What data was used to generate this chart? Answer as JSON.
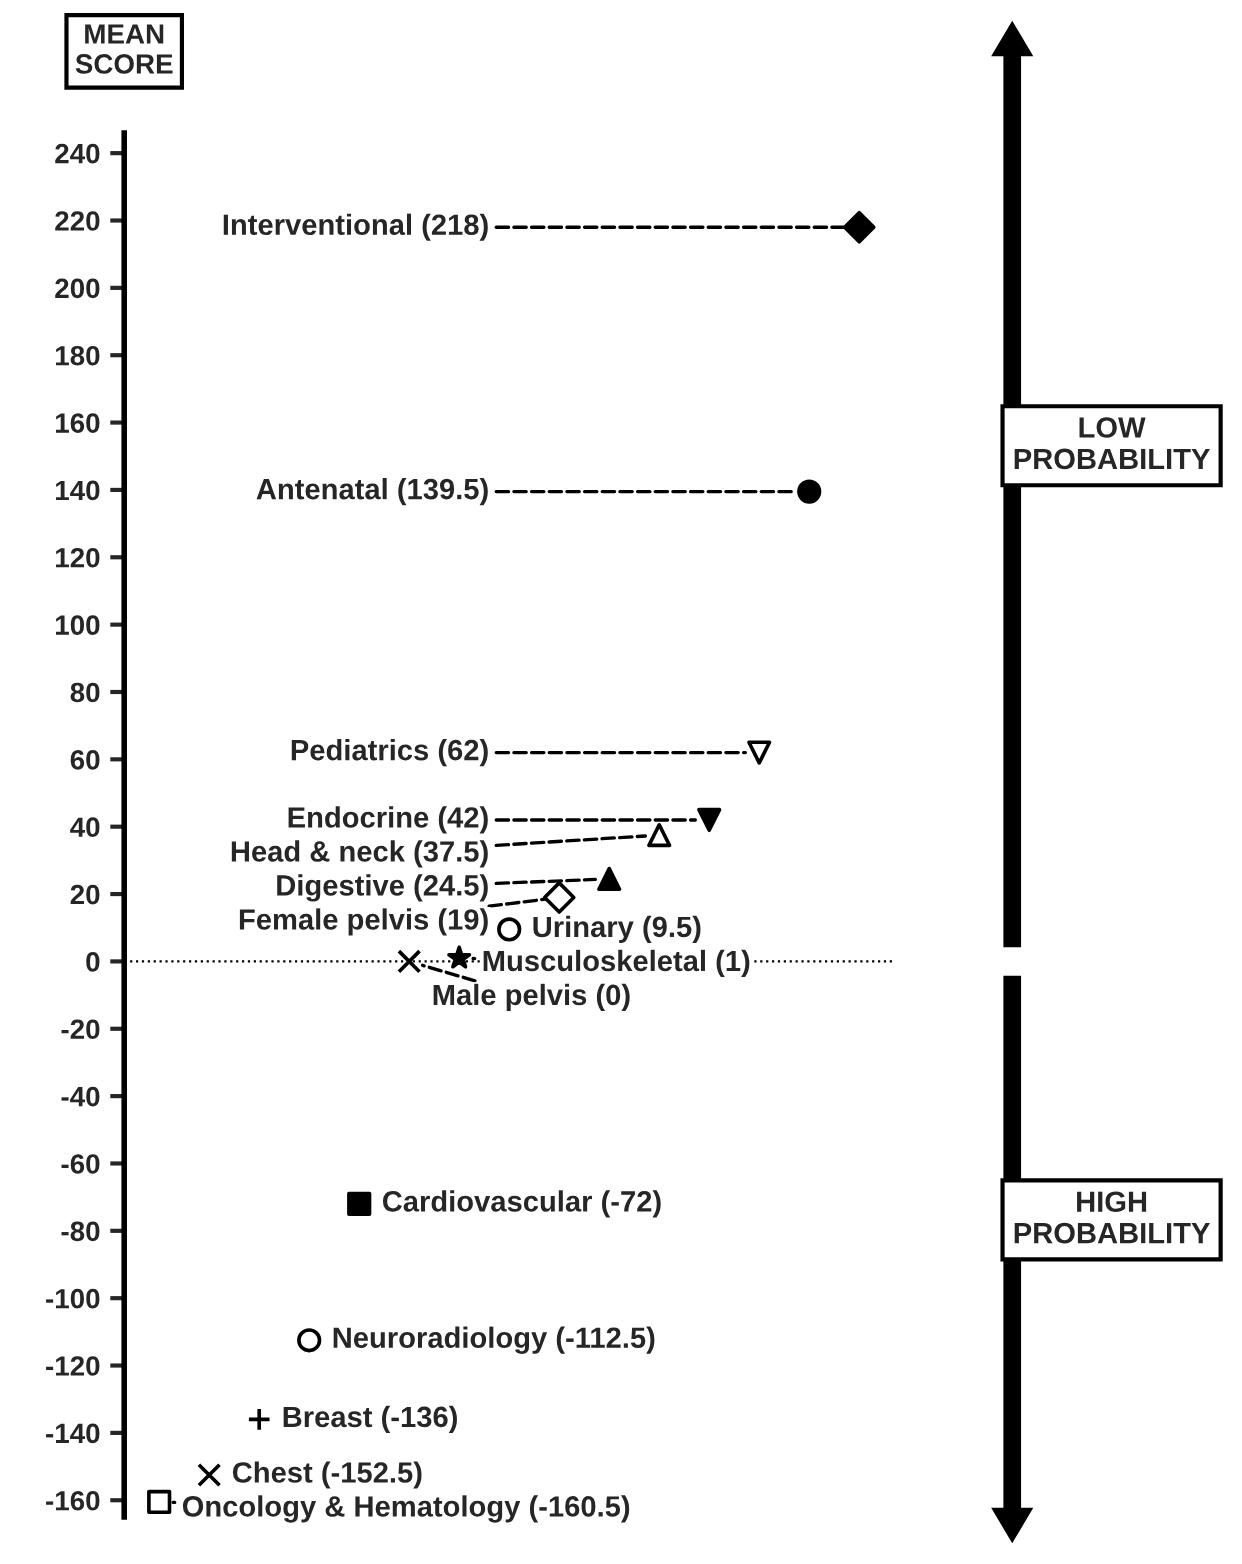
{
  "chart_data": {
    "type": "scatter",
    "ylabel": "MEAN\nSCORE",
    "categories": [
      null,
      null,
      null,
      null,
      null,
      null,
      null,
      null,
      null,
      null,
      null,
      null,
      null,
      null,
      null
    ],
    "series": [
      {
        "marker": "square",
        "color": "#ffffff",
        "values": [
          -160.5,
          null,
          null,
          null,
          null,
          null,
          null,
          null,
          null,
          null,
          null,
          null,
          null,
          null,
          null
        ],
        "value_labels": [
          "Oncology & Hematology (-160.5)",
          null,
          null,
          null,
          null,
          null,
          null,
          null,
          null,
          null,
          null,
          null,
          null,
          null,
          null
        ]
      },
      {
        "marker": "cross",
        "color": "#000000",
        "values": [
          null,
          -152.5,
          null,
          null,
          null,
          null,
          null,
          null,
          null,
          null,
          null,
          null,
          null,
          null,
          null
        ],
        "value_labels": [
          null,
          "Chest (-152.5)",
          null,
          null,
          null,
          null,
          null,
          null,
          null,
          null,
          null,
          null,
          null,
          null,
          null
        ]
      },
      {
        "marker": "plus",
        "color": "#000000",
        "values": [
          null,
          null,
          -136,
          null,
          null,
          null,
          null,
          null,
          null,
          null,
          null,
          null,
          null,
          null,
          null
        ],
        "value_labels": [
          null,
          null,
          "Breast (-136)",
          null,
          null,
          null,
          null,
          null,
          null,
          null,
          null,
          null,
          null,
          null,
          null
        ]
      },
      {
        "marker": "circle",
        "color": "#ffffff",
        "values": [
          null,
          null,
          null,
          -112.5,
          null,
          null,
          null,
          null,
          null,
          null,
          null,
          null,
          null,
          null,
          null
        ],
        "value_labels": [
          null,
          null,
          null,
          "Neuroradiology (-112.5)",
          null,
          null,
          null,
          null,
          null,
          null,
          null,
          null,
          null,
          null,
          null
        ]
      },
      {
        "marker": "square",
        "color": "#000000",
        "values": [
          null,
          null,
          null,
          null,
          -72,
          null,
          null,
          null,
          null,
          null,
          null,
          null,
          null,
          null,
          null
        ],
        "value_labels": [
          null,
          null,
          null,
          null,
          "Cardiovascular (-72)",
          null,
          null,
          null,
          null,
          null,
          null,
          null,
          null,
          null,
          null
        ]
      },
      {
        "marker": "cross",
        "color": "#000000",
        "values": [
          null,
          null,
          null,
          null,
          null,
          0,
          null,
          null,
          null,
          null,
          null,
          null,
          null,
          null,
          null
        ],
        "value_labels": [
          null,
          null,
          null,
          null,
          null,
          "Male pelvis (0)",
          null,
          null,
          null,
          null,
          null,
          null,
          null,
          null,
          null
        ]
      },
      {
        "marker": "star",
        "color": "#000000",
        "values": [
          null,
          null,
          null,
          null,
          null,
          null,
          1,
          null,
          null,
          null,
          null,
          null,
          null,
          null,
          null
        ],
        "value_labels": [
          null,
          null,
          null,
          null,
          null,
          null,
          "Musculoskeletal (1)",
          null,
          null,
          null,
          null,
          null,
          null,
          null,
          null
        ]
      },
      {
        "marker": "circle",
        "color": "#ffffff",
        "values": [
          null,
          null,
          null,
          null,
          null,
          null,
          null,
          9.5,
          null,
          null,
          null,
          null,
          null,
          null,
          null
        ],
        "value_labels": [
          null,
          null,
          null,
          null,
          null,
          null,
          null,
          "Urinary (9.5)",
          null,
          null,
          null,
          null,
          null,
          null,
          null
        ]
      },
      {
        "marker": "diamond",
        "color": "#ffffff",
        "values": [
          null,
          null,
          null,
          null,
          null,
          null,
          null,
          null,
          19,
          null,
          null,
          null,
          null,
          null,
          null
        ],
        "value_labels": [
          null,
          null,
          null,
          null,
          null,
          null,
          null,
          null,
          "Female pelvis (19)",
          null,
          null,
          null,
          null,
          null,
          null
        ]
      },
      {
        "marker": "triangle",
        "color": "#000000",
        "values": [
          null,
          null,
          null,
          null,
          null,
          null,
          null,
          null,
          null,
          24.5,
          null,
          null,
          null,
          null,
          null
        ],
        "value_labels": [
          null,
          null,
          null,
          null,
          null,
          null,
          null,
          null,
          null,
          "Digestive (24.5)",
          null,
          null,
          null,
          null,
          null
        ]
      },
      {
        "marker": "triangle",
        "color": "#ffffff",
        "values": [
          null,
          null,
          null,
          null,
          null,
          null,
          null,
          null,
          null,
          null,
          37.5,
          null,
          null,
          null,
          null
        ],
        "value_labels": [
          null,
          null,
          null,
          null,
          null,
          null,
          null,
          null,
          null,
          null,
          "Head & neck (37.5)",
          null,
          null,
          null,
          null
        ]
      },
      {
        "marker": "triangle_down",
        "color": "#000000",
        "values": [
          null,
          null,
          null,
          null,
          null,
          null,
          null,
          null,
          null,
          null,
          null,
          42,
          null,
          null,
          null
        ],
        "value_labels": [
          null,
          null,
          null,
          null,
          null,
          null,
          null,
          null,
          null,
          null,
          null,
          "Endocrine (42)",
          null,
          null,
          null
        ]
      },
      {
        "marker": "triangle_down",
        "color": "#ffffff",
        "values": [
          null,
          null,
          null,
          null,
          null,
          null,
          null,
          null,
          null,
          null,
          null,
          null,
          62,
          null,
          null
        ],
        "value_labels": [
          null,
          null,
          null,
          null,
          null,
          null,
          null,
          null,
          null,
          null,
          null,
          null,
          "Pediatrics (62)",
          null,
          null
        ]
      },
      {
        "marker": "circle",
        "color": "#000000",
        "values": [
          null,
          null,
          null,
          null,
          null,
          null,
          null,
          null,
          null,
          null,
          null,
          null,
          null,
          139.5,
          null
        ],
        "value_labels": [
          null,
          null,
          null,
          null,
          null,
          null,
          null,
          null,
          null,
          null,
          null,
          null,
          null,
          "Antenatal (139.5)",
          null
        ]
      },
      {
        "marker": "diamond",
        "color": "#000000",
        "values": [
          null,
          null,
          null,
          null,
          null,
          null,
          null,
          null,
          null,
          null,
          null,
          null,
          null,
          null,
          218
        ],
        "value_labels": [
          null,
          null,
          null,
          null,
          null,
          null,
          null,
          null,
          null,
          null,
          null,
          null,
          null,
          null,
          "Interventional (218)"
        ]
      }
    ],
    "ylim": [
      -165,
      246
    ],
    "yticks": [
      -160,
      -140,
      -120,
      -100,
      -80,
      -60,
      -40,
      -20,
      0,
      20,
      40,
      60,
      80,
      100,
      120,
      140,
      160,
      180,
      200,
      220,
      240
    ],
    "tick_labels": "y",
    "ref_lines": [
      {
        "axis": "y",
        "value": 0,
        "line_style": "dotted",
        "color": "#000000"
      }
    ],
    "annotations": [
      "LOW\nPROBABILITY",
      "HIGH\nPROBABILITY"
    ]
  }
}
